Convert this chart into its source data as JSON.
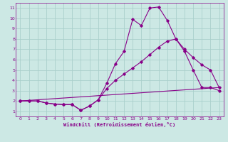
{
  "title": "",
  "xlabel": "Windchill (Refroidissement éolien,°C)",
  "bg_color": "#cce8e4",
  "grid_color": "#aacfcb",
  "line_color": "#880088",
  "xlim": [
    -0.5,
    23.5
  ],
  "ylim": [
    0.5,
    11.5
  ],
  "xticks": [
    0,
    1,
    2,
    3,
    4,
    5,
    6,
    7,
    8,
    9,
    10,
    11,
    12,
    13,
    14,
    15,
    16,
    17,
    18,
    19,
    20,
    21,
    22,
    23
  ],
  "yticks": [
    1,
    2,
    3,
    4,
    5,
    6,
    7,
    8,
    9,
    10,
    11
  ],
  "curve1_x": [
    0,
    1,
    2,
    3,
    4,
    5,
    6,
    7,
    8,
    9,
    10,
    11,
    12,
    13,
    14,
    15,
    16,
    17,
    18,
    19,
    20,
    21,
    22,
    23
  ],
  "curve1_y": [
    2.0,
    2.0,
    2.0,
    1.8,
    1.7,
    1.65,
    1.65,
    1.1,
    1.5,
    2.1,
    3.7,
    5.6,
    6.8,
    9.9,
    9.3,
    11.0,
    11.1,
    9.8,
    8.0,
    6.8,
    5.0,
    3.3,
    3.3,
    3.0
  ],
  "curve2_x": [
    0,
    1,
    2,
    3,
    4,
    5,
    6,
    7,
    8,
    9,
    10,
    11,
    12,
    13,
    14,
    15,
    16,
    17,
    18,
    19,
    20,
    21,
    22,
    23
  ],
  "curve2_y": [
    2.0,
    2.0,
    2.0,
    1.8,
    1.7,
    1.65,
    1.65,
    1.1,
    1.5,
    2.1,
    3.2,
    4.0,
    4.6,
    5.2,
    5.8,
    6.5,
    7.2,
    7.8,
    8.0,
    7.0,
    6.2,
    5.5,
    5.0,
    3.3
  ],
  "curve3_x": [
    0,
    23
  ],
  "curve3_y": [
    2.0,
    3.3
  ]
}
